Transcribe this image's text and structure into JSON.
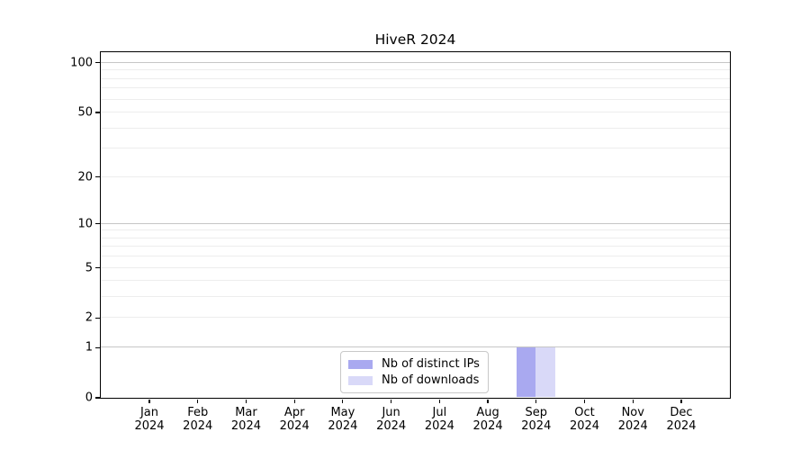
{
  "title": "HiveR 2024",
  "chart_data": {
    "type": "bar",
    "title": "HiveR 2024",
    "categories": [
      "Jan 2024",
      "Feb 2024",
      "Mar 2024",
      "Apr 2024",
      "May 2024",
      "Jun 2024",
      "Jul 2024",
      "Aug 2024",
      "Sep 2024",
      "Oct 2024",
      "Nov 2024",
      "Dec 2024"
    ],
    "series": [
      {
        "name": "Nb of distinct IPs",
        "color": "#a9a9f0",
        "values": [
          0,
          0,
          0,
          0,
          0,
          0,
          0,
          0,
          1,
          0,
          0,
          0
        ]
      },
      {
        "name": "Nb of downloads",
        "color": "#d9d9f8",
        "values": [
          0,
          0,
          0,
          0,
          0,
          0,
          0,
          0,
          1,
          0,
          0,
          0
        ]
      }
    ],
    "xlabel": "",
    "ylabel": "",
    "yscale": "log1p",
    "ylim": [
      0,
      116
    ],
    "ytick_values": [
      0,
      1,
      2,
      5,
      10,
      20,
      50,
      100
    ],
    "ytick_labels": [
      "0",
      "1",
      "2",
      "5",
      "10",
      "20",
      "50",
      "100"
    ],
    "grid": {
      "major_values": [
        1,
        10,
        100
      ],
      "minor_values": [
        2,
        3,
        4,
        5,
        6,
        7,
        8,
        9,
        20,
        30,
        40,
        50,
        60,
        70,
        80,
        90
      ],
      "major_color": "#c6c6c6",
      "minor_color": "#ededed"
    },
    "legend_position": "inside-bottom-center",
    "axis_color": "#000000",
    "text_color": "#000000",
    "background_color": "#ffffff"
  },
  "legend": {
    "items": [
      {
        "label": "Nb of distinct IPs",
        "color": "#a9a9f0"
      },
      {
        "label": "Nb of downloads",
        "color": "#d9d9f8"
      }
    ]
  }
}
